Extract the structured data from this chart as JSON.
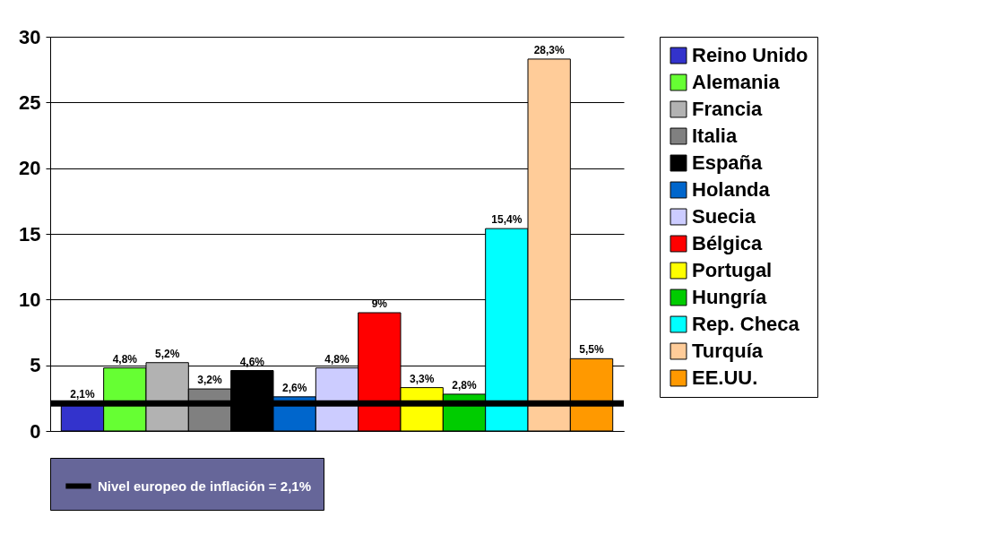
{
  "chart_data": {
    "type": "bar",
    "categories": [
      null
    ],
    "ylim": [
      0,
      30
    ],
    "yticks": [
      0,
      5,
      10,
      15,
      20,
      25,
      30
    ],
    "grid": "y",
    "legend": "right",
    "tick_labels": "y",
    "series": [
      {
        "name": "Reino Unido",
        "color": "#3333cc",
        "values": [
          2.1
        ],
        "value_labels": [
          "2,1%"
        ]
      },
      {
        "name": "Alemania",
        "color": "#66ff33",
        "values": [
          4.8
        ],
        "value_labels": [
          "4,8%"
        ]
      },
      {
        "name": "Francia",
        "color": "#b2b2b2",
        "values": [
          5.2
        ],
        "value_labels": [
          "5,2%"
        ]
      },
      {
        "name": "Italia",
        "color": "#808080",
        "values": [
          3.2
        ],
        "value_labels": [
          "3,2%"
        ]
      },
      {
        "name": "España",
        "color": "#000000",
        "values": [
          4.6
        ],
        "value_labels": [
          "4,6%"
        ]
      },
      {
        "name": "Holanda",
        "color": "#0066cc",
        "values": [
          2.6
        ],
        "value_labels": [
          "2,6%"
        ]
      },
      {
        "name": "Suecia",
        "color": "#ccccff",
        "values": [
          4.8
        ],
        "value_labels": [
          "4,8%"
        ]
      },
      {
        "name": "Bélgica",
        "color": "#ff0000",
        "values": [
          9
        ],
        "value_labels": [
          "9%"
        ]
      },
      {
        "name": "Portugal",
        "color": "#ffff00",
        "values": [
          3.3
        ],
        "value_labels": [
          "3,3%"
        ]
      },
      {
        "name": "Hungría",
        "color": "#00cc00",
        "values": [
          2.8
        ],
        "value_labels": [
          "2,8%"
        ]
      },
      {
        "name": "Rep. Checa",
        "color": "#00ffff",
        "values": [
          15.4
        ],
        "value_labels": [
          "15,4%"
        ]
      },
      {
        "name": "Turquía",
        "color": "#ffcc99",
        "values": [
          28.3
        ],
        "value_labels": [
          "28,3%"
        ]
      },
      {
        "name": "EE.UU.",
        "color": "#ff9900",
        "values": [
          5.5
        ],
        "value_labels": [
          "5,5%"
        ]
      }
    ],
    "ref_lines": [
      {
        "axis": "y",
        "value": 2.1,
        "label": "Nivel europeo de inflación = 2,1%",
        "color": "#000000"
      }
    ]
  }
}
